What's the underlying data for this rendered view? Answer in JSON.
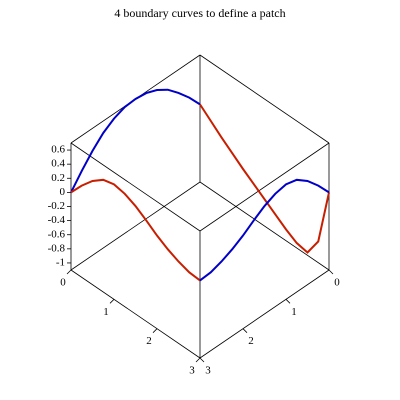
{
  "chart_data": {
    "type": "line3d",
    "title": "4 boundary curves to define a patch",
    "xlim": [
      0,
      3
    ],
    "ylim": [
      0,
      3
    ],
    "zlim": [
      -1.1,
      0.7
    ],
    "xticks": [
      0,
      1,
      2,
      3
    ],
    "yticks": [
      0,
      1,
      2,
      3
    ],
    "zticks": [
      -1,
      -0.8,
      -0.6,
      -0.4,
      -0.2,
      0,
      0.2,
      0.4,
      0.6
    ],
    "series": [
      {
        "color": "#0000c8",
        "x": [
          0,
          0,
          0,
          0,
          0,
          0,
          0,
          0,
          0,
          0,
          0,
          0,
          0
        ],
        "y": [
          0,
          0.25,
          0.5,
          0.75,
          1,
          1.25,
          1.5,
          1.75,
          2,
          2.25,
          2.5,
          2.75,
          3
        ],
        "z": [
          0,
          0.2,
          0.37,
          0.52,
          0.62,
          0.68,
          0.7,
          0.69,
          0.63,
          0.53,
          0.38,
          0.2,
          0
        ]
      },
      {
        "color": "#c81e00",
        "x": [
          0,
          0.25,
          0.5,
          0.75,
          1,
          1.25,
          1.5,
          1.75,
          2,
          2.25,
          2.5,
          2.75,
          3
        ],
        "y": [
          3,
          3,
          3,
          3,
          3,
          3,
          3,
          3,
          3,
          3,
          3,
          3,
          3
        ],
        "z": [
          0,
          0.2,
          0.37,
          0.49,
          0.53,
          0.5,
          0.43,
          0.33,
          0.22,
          0.13,
          0.06,
          0.01,
          0
        ]
      },
      {
        "color": "#c81e00",
        "x": [
          0,
          0.25,
          0.5,
          0.75,
          1,
          1.25,
          1.5,
          1.75,
          2,
          2.25,
          2.5,
          2.75,
          3
        ],
        "y": [
          0,
          0,
          0,
          0,
          0,
          0,
          0,
          0,
          0,
          0,
          0,
          0,
          0
        ],
        "z": [
          0,
          -0.13,
          -0.26,
          -0.38,
          -0.5,
          -0.61,
          -0.72,
          -0.83,
          -0.94,
          -1.03,
          -1.06,
          -0.8,
          0
        ]
      },
      {
        "color": "#0000c8",
        "x": [
          3,
          3,
          3,
          3,
          3,
          3,
          3,
          3,
          3,
          3,
          3,
          3,
          3
        ],
        "y": [
          0,
          0.25,
          0.5,
          0.75,
          1,
          1.25,
          1.5,
          1.75,
          2,
          2.25,
          2.5,
          2.75,
          3
        ],
        "z": [
          0,
          0.2,
          0.37,
          0.49,
          0.53,
          0.5,
          0.43,
          0.33,
          0.22,
          0.13,
          0.06,
          0.01,
          0
        ]
      }
    ]
  }
}
